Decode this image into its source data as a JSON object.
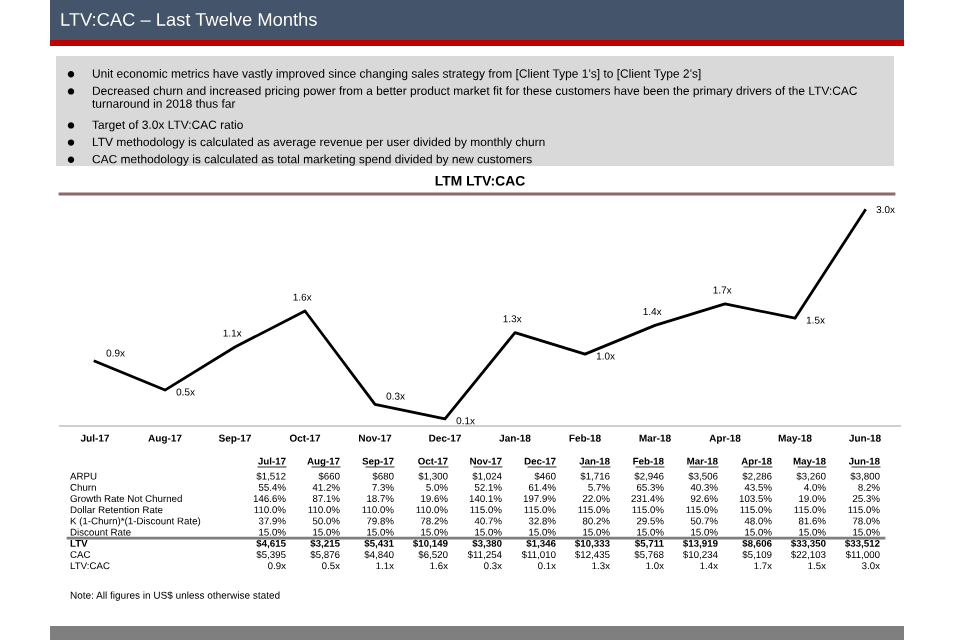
{
  "chart_data": [
    {
      "type": "line",
      "title": "LTM LTV:CAC",
      "annotations": [
        "LTV:CAC – Last Twelve Months",
        "Unit economic metrics have vastly improved since changing sales strategy from [Client Type 1’s] to [Client Type 2’s]",
        "Decreased churn and increased pricing power from a better product market fit for these customers have been the primary drivers of the LTV:CAC turnaround in 2018 thus far",
        "Target of 3.0x LTV:CAC ratio",
        "LTV methodology is calculated as average revenue per user divided by monthly churn",
        "CAC methodology is calculated as total marketing spend divided by new customers"
      ],
      "categories": [
        "Jul-17",
        "Aug-17",
        "Sep-17",
        "Oct-17",
        "Nov-17",
        "Dec-17",
        "Jan-18",
        "Feb-18",
        "Mar-18",
        "Apr-18",
        "May-18",
        "Jun-18"
      ],
      "values": [
        0.9,
        0.5,
        1.1,
        1.6,
        0.3,
        0.1,
        1.3,
        1.0,
        1.4,
        1.7,
        1.5,
        3.0
      ],
      "value_labels": [
        "0.9x",
        "0.5x",
        "1.1x",
        "1.6x",
        "0.3x",
        "0.1x",
        "1.3x",
        "1.0x",
        "1.4x",
        "1.7x",
        "1.5x",
        "3.0x"
      ],
      "color": "#000000"
    },
    {
      "type": "other",
      "categories": [
        "Jul-17",
        "Aug-17",
        "Sep-17",
        "Oct-17",
        "Nov-17",
        "Dec-17",
        "Jan-18",
        "Feb-18",
        "Mar-18",
        "Apr-18",
        "May-18",
        "Jun-18"
      ],
      "y_categories": [
        "ARPU",
        "Churn",
        "Growth Rate Not Churned",
        "Dollar Retention Rate",
        "K (1-Churn)*(1-Discount Rate)",
        "Discount Rate",
        "LTV",
        "CAC",
        "LTV:CAC"
      ],
      "cell_labels": [
        [
          "$1,512",
          "$660",
          "$680",
          "$1,300",
          "$1,024",
          "$460",
          "$1,716",
          "$2,946",
          "$3,506",
          "$2,286",
          "$3,260",
          "$3,800"
        ],
        [
          "55.4%",
          "41.2%",
          "7.3%",
          "5.0%",
          "52.1%",
          "61.4%",
          "5.7%",
          "65.3%",
          "40.3%",
          "43.5%",
          "4.0%",
          "8.2%"
        ],
        [
          "146.6%",
          "87.1%",
          "18.7%",
          "19.6%",
          "140.1%",
          "197.9%",
          "22.0%",
          "231.4%",
          "92.6%",
          "103.5%",
          "19.0%",
          "25.3%"
        ],
        [
          "110.0%",
          "110.0%",
          "110.0%",
          "110.0%",
          "115.0%",
          "115.0%",
          "115.0%",
          "115.0%",
          "115.0%",
          "115.0%",
          "115.0%",
          "115.0%"
        ],
        [
          "37.9%",
          "50.0%",
          "79.8%",
          "78.2%",
          "40.7%",
          "32.8%",
          "80.2%",
          "29.5%",
          "50.7%",
          "48.0%",
          "81.6%",
          "78.0%"
        ],
        [
          "15.0%",
          "15.0%",
          "15.0%",
          "15.0%",
          "15.0%",
          "15.0%",
          "15.0%",
          "15.0%",
          "15.0%",
          "15.0%",
          "15.0%",
          "15.0%"
        ],
        [
          "$4,615",
          "$3,215",
          "$5,431",
          "$10,149",
          "$3,380",
          "$1,346",
          "$10,333",
          "$5,711",
          "$13,919",
          "$8,606",
          "$33,350",
          "$33,512"
        ],
        [
          "$5,395",
          "$5,876",
          "$4,840",
          "$6,520",
          "$11,254",
          "$11,010",
          "$12,435",
          "$5,768",
          "$10,234",
          "$5,109",
          "$22,103",
          "$11,000"
        ],
        [
          "0.9x",
          "0.5x",
          "1.1x",
          "1.6x",
          "0.3x",
          "0.1x",
          "1.3x",
          "1.0x",
          "1.4x",
          "1.7x",
          "1.5x",
          "3.0x"
        ]
      ],
      "annotations": [
        "Note: All figures in US$ unless otherwise stated"
      ]
    }
  ]
}
